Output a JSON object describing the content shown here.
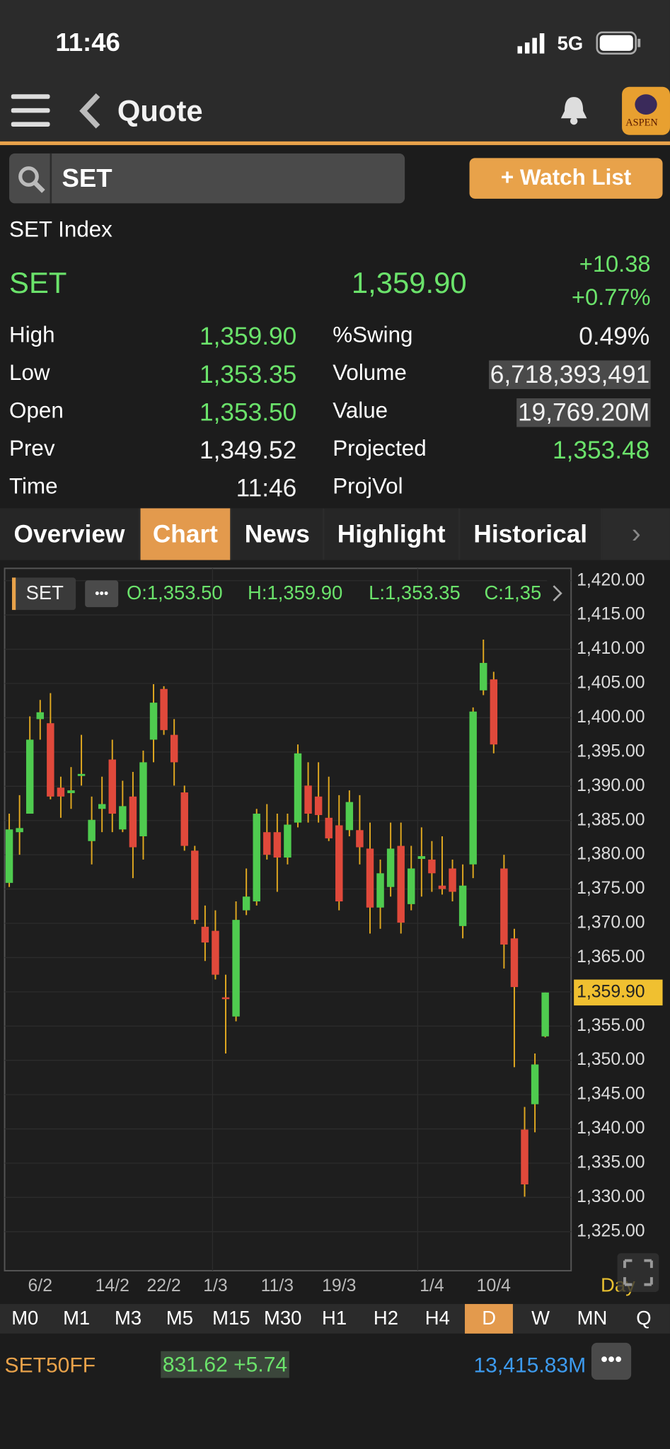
{
  "status": {
    "time": "11:46",
    "network": "5G"
  },
  "header": {
    "title": "Quote",
    "logo": "ASPEN"
  },
  "search": {
    "query": "SET",
    "button": "+ Watch List"
  },
  "quote": {
    "name": "SET Index",
    "symbol": "SET",
    "last": "1,359.90",
    "change": "+10.38",
    "change_pct": "+0.77%",
    "left": [
      [
        "High",
        "1,359.90"
      ],
      [
        "Low",
        "1,353.35"
      ],
      [
        "Open",
        "1,353.50"
      ],
      [
        "Prev",
        "1,349.52"
      ],
      [
        "Time",
        "11:46"
      ]
    ],
    "right": [
      [
        "%Swing",
        "0.49%"
      ],
      [
        "Volume",
        "6,718,393,491"
      ],
      [
        "Value",
        "19,769.20M"
      ],
      [
        "Projected",
        "1,353.48"
      ],
      [
        "ProjVol"
      ]
    ]
  },
  "tabs": [
    "Overview",
    "Chart",
    "News",
    "Highlight",
    "Historical"
  ],
  "active_tab": 1,
  "chart_data": {
    "type": "candlestick",
    "symbol": "SET",
    "ohlc_header": [
      "O:1,353.50",
      "H:1,359.90",
      "L:1,353.35",
      "C:1,35"
    ],
    "categories": [
      null,
      null,
      null,
      "6/2",
      null,
      null,
      null,
      null,
      null,
      null,
      "14/2",
      null,
      null,
      null,
      null,
      "22/2",
      null,
      null,
      null,
      null,
      "1/3",
      null,
      null,
      null,
      null,
      null,
      "11/3",
      null,
      null,
      null,
      null,
      null,
      "19/3",
      null,
      null,
      null,
      null,
      null,
      null,
      null,
      null,
      "1/4",
      null,
      null,
      null,
      null,
      null,
      "10/4",
      null,
      null,
      null,
      null,
      null
    ],
    "open": [
      1375.9,
      1383.3,
      1386.0,
      1399.8,
      1399.2,
      1389.8,
      1389.0,
      1391.5,
      1382.0,
      1386.7,
      1393.9,
      1383.7,
      1388.5,
      1382.7,
      1396.8,
      1404.2,
      1397.5,
      1389.1,
      1380.6,
      1369.5,
      1368.9,
      1359.2,
      1356.4,
      1371.9,
      1373.2,
      1383.3,
      1383.3,
      1379.6,
      1384.7,
      1390.1,
      1388.5,
      1385.4,
      1384.3,
      1383.6,
      1383.6,
      1380.9,
      1372.3,
      1375.3,
      1381.3,
      1372.8,
      1379.4,
      1379.3,
      1375.5,
      1378.0,
      1369.6,
      1378.6,
      1404.0,
      1405.6,
      1378.0,
      1367.8,
      1339.9,
      1343.6,
      1353.5
    ],
    "high": [
      1386.0,
      1388.7,
      1400.2,
      1402.6,
      1403.6,
      1391.4,
      1392.8,
      1397.5,
      1388.5,
      1391.4,
      1396.8,
      1390.8,
      1392.1,
      1395.2,
      1404.9,
      1404.6,
      1399.8,
      1390.1,
      1381.3,
      1372.6,
      1371.9,
      1362.5,
      1373.2,
      1378.0,
      1386.7,
      1387.4,
      1386.0,
      1386.0,
      1396.1,
      1393.5,
      1393.5,
      1391.4,
      1388.7,
      1389.4,
      1388.7,
      1384.7,
      1379.3,
      1384.7,
      1384.7,
      1381.3,
      1384.0,
      1382.0,
      1382.7,
      1379.3,
      1378.6,
      1401.5,
      1411.4,
      1406.7,
      1380.0,
      1369.2,
      1343.2,
      1351.0,
      1359.9
    ],
    "low": [
      1375.3,
      1380.0,
      1386.0,
      1396.8,
      1388.1,
      1385.4,
      1386.7,
      1390.1,
      1378.6,
      1383.3,
      1383.3,
      1383.3,
      1376.6,
      1379.3,
      1393.5,
      1397.5,
      1390.1,
      1380.6,
      1369.9,
      1364.5,
      1361.8,
      1351.0,
      1355.7,
      1371.2,
      1372.6,
      1379.3,
      1374.6,
      1378.6,
      1384.0,
      1384.7,
      1384.7,
      1382.0,
      1371.9,
      1382.7,
      1378.6,
      1368.5,
      1369.2,
      1373.9,
      1368.5,
      1371.9,
      1373.9,
      1374.6,
      1374.2,
      1373.2,
      1367.8,
      1376.6,
      1403.3,
      1394.8,
      1363.4,
      1349.0,
      1330.1,
      1339.5,
      1353.35
    ],
    "close": [
      1383.7,
      1383.9,
      1396.8,
      1400.8,
      1388.5,
      1388.5,
      1389.4,
      1391.8,
      1385.1,
      1387.4,
      1386.0,
      1387.1,
      1381.1,
      1393.5,
      1402.2,
      1398.2,
      1393.5,
      1381.3,
      1370.5,
      1367.2,
      1362.5,
      1359.0,
      1370.5,
      1373.9,
      1386.0,
      1380.0,
      1379.6,
      1384.4,
      1394.8,
      1386.0,
      1385.8,
      1382.4,
      1373.2,
      1387.7,
      1381.1,
      1372.3,
      1377.3,
      1380.9,
      1370.1,
      1378.0,
      1379.8,
      1377.3,
      1375.0,
      1374.6,
      1375.5,
      1400.9,
      1408.0,
      1396.1,
      1366.9,
      1360.7,
      1331.9,
      1349.4,
      1359.9
    ],
    "up_color": "#4fcb4f",
    "down_color": "#e0493b",
    "wick_color": "#e0a820",
    "ylim": [
      1319.3,
      1421.8
    ],
    "yticks": [
      {
        "value": 1325,
        "label": "1,325.00"
      },
      {
        "value": 1330,
        "label": "1,330.00"
      },
      {
        "value": 1335,
        "label": "1,335.00"
      },
      {
        "value": 1340,
        "label": "1,340.00"
      },
      {
        "value": 1345,
        "label": "1,345.00"
      },
      {
        "value": 1350,
        "label": "1,350.00"
      },
      {
        "value": 1355,
        "label": "1,355.00"
      },
      {
        "value": 1360,
        "label": "1,360.00"
      },
      {
        "value": 1365,
        "label": "1,365.00"
      },
      {
        "value": 1370,
        "label": "1,370.00"
      },
      {
        "value": 1375,
        "label": "1,375.00"
      },
      {
        "value": 1380,
        "label": "1,380.00"
      },
      {
        "value": 1385,
        "label": "1,385.00"
      },
      {
        "value": 1390,
        "label": "1,390.00"
      },
      {
        "value": 1395,
        "label": "1,395.00"
      },
      {
        "value": 1400,
        "label": "1,400.00"
      },
      {
        "value": 1405,
        "label": "1,405.00"
      },
      {
        "value": 1410,
        "label": "1,410.00"
      },
      {
        "value": 1415,
        "label": "1,415.00"
      },
      {
        "value": 1420,
        "label": "1,420.00"
      }
    ],
    "grid": true,
    "price_line": {
      "value": 1359.9,
      "label": "1,359.90"
    },
    "period_label": "Day"
  },
  "timeframes": [
    "M0",
    "M1",
    "M3",
    "M5",
    "M15",
    "M30",
    "H1",
    "H2",
    "H4",
    "D",
    "W",
    "MN",
    "Q"
  ],
  "active_timeframe": 9,
  "ticker": {
    "symbol": "SET50FF",
    "quote": "831.62 +5.74",
    "value": "13,415.83M"
  }
}
